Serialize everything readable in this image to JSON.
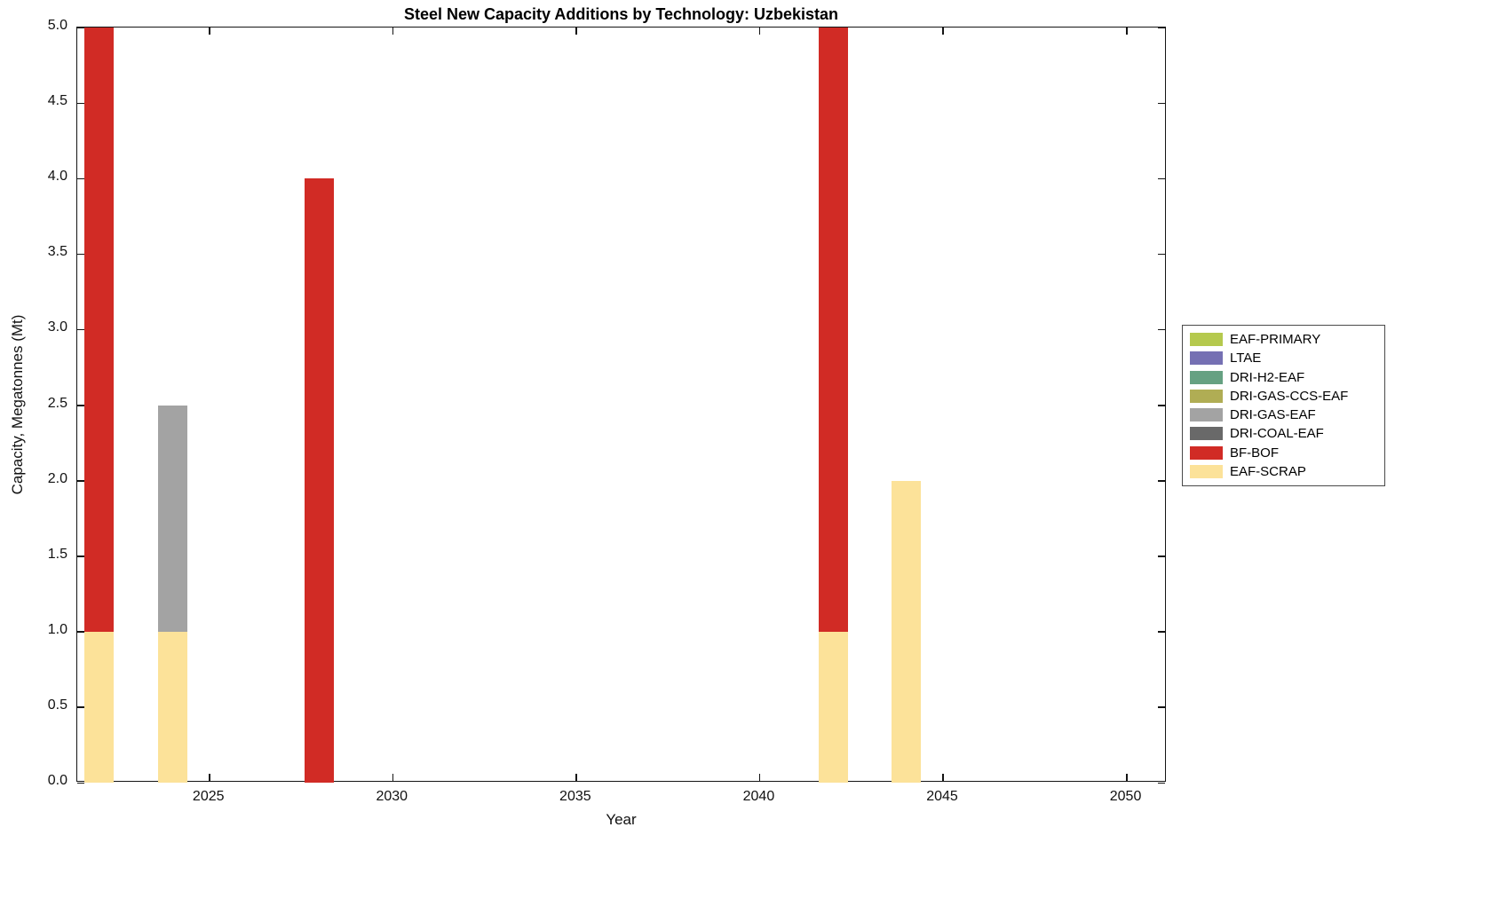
{
  "chart_data": {
    "type": "bar",
    "stacked": true,
    "title": "Steel New Capacity Additions by Technology: Uzbekistan",
    "xlabel": "Year",
    "ylabel": "Capacity, Megatonnes (Mt)",
    "xlim": [
      2021.4,
      2051.1
    ],
    "ylim": [
      0,
      5
    ],
    "xticks": [
      2025,
      2030,
      2035,
      2040,
      2045,
      2050
    ],
    "yticks": [
      0,
      0.5,
      1,
      1.5,
      2,
      2.5,
      3,
      3.5,
      4,
      4.5,
      5
    ],
    "bar_width_years": 0.8,
    "grid": false,
    "legend_position": "right-outside",
    "x": [
      2022,
      2024,
      2028,
      2042,
      2044
    ],
    "series": [
      {
        "name": "EAF-SCRAP",
        "color": "#fce299",
        "values": [
          1,
          1,
          0,
          1,
          2
        ]
      },
      {
        "name": "BF-BOF",
        "color": "#d12b25",
        "values": [
          4,
          0,
          4,
          4,
          0
        ]
      },
      {
        "name": "DRI-COAL-EAF",
        "color": "#696969",
        "values": [
          0,
          0,
          0,
          0,
          0
        ]
      },
      {
        "name": "DRI-GAS-EAF",
        "color": "#a3a3a3",
        "values": [
          0,
          1.5,
          0,
          0,
          0
        ]
      },
      {
        "name": "DRI-GAS-CCS-EAF",
        "color": "#b0ad54",
        "values": [
          0,
          0,
          0,
          0,
          0
        ]
      },
      {
        "name": "DRI-H2-EAF",
        "color": "#66a182",
        "values": [
          0,
          0,
          0,
          0,
          0
        ]
      },
      {
        "name": "LTAE",
        "color": "#7570b3",
        "values": [
          0,
          0,
          0,
          0,
          0
        ]
      },
      {
        "name": "EAF-PRIMARY",
        "color": "#b5c94e",
        "values": [
          0,
          0,
          0,
          0,
          0
        ]
      }
    ],
    "legend": [
      {
        "label": "EAF-PRIMARY",
        "color": "#b5c94e"
      },
      {
        "label": "LTAE",
        "color": "#7570b3"
      },
      {
        "label": "DRI-H2-EAF",
        "color": "#66a182"
      },
      {
        "label": "DRI-GAS-CCS-EAF",
        "color": "#b0ad54"
      },
      {
        "label": "DRI-GAS-EAF",
        "color": "#a3a3a3"
      },
      {
        "label": "DRI-COAL-EAF",
        "color": "#696969"
      },
      {
        "label": "BF-BOF",
        "color": "#d12b25"
      },
      {
        "label": "EAF-SCRAP",
        "color": "#fce299"
      }
    ]
  }
}
